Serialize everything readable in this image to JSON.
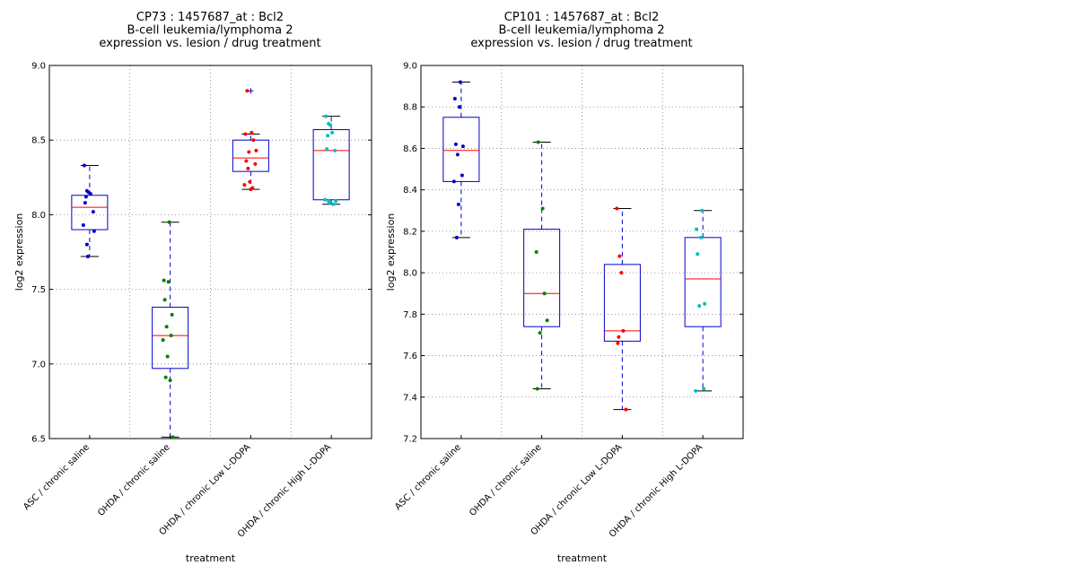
{
  "chart_data": [
    {
      "type": "box",
      "title": [
        "CP73 : 1457687_at : Bcl2",
        "B-cell leukemia/lymphoma 2",
        "expression vs. lesion / drug treatment"
      ],
      "xlabel": "treatment",
      "ylabel": "log2 expression",
      "ylim": [
        6.5,
        9.0
      ],
      "yticks": [
        "6.5",
        "7.0",
        "7.5",
        "8.0",
        "8.5",
        "9.0"
      ],
      "grid": true,
      "categories": [
        "ASC / chronic saline",
        "OHDA / chronic saline",
        "OHDA / chronic Low L-DOPA",
        "OHDA / chronic High L-DOPA"
      ],
      "series_colors": [
        "#0000cc",
        "#008000",
        "#ff0000",
        "#00bfbf"
      ],
      "boxes": [
        {
          "q1": 7.9,
          "median": 8.05,
          "q3": 8.13,
          "whislo": 7.72,
          "whishi": 8.33,
          "fliers": []
        },
        {
          "q1": 6.97,
          "median": 7.19,
          "q3": 7.38,
          "whislo": 6.51,
          "whishi": 7.95,
          "fliers": []
        },
        {
          "q1": 8.29,
          "median": 8.38,
          "q3": 8.5,
          "whislo": 8.17,
          "whishi": 8.54,
          "fliers": [
            8.83
          ]
        },
        {
          "q1": 8.1,
          "median": 8.43,
          "q3": 8.57,
          "whislo": 8.07,
          "whishi": 8.66,
          "fliers": []
        }
      ],
      "points": [
        [
          8.33,
          8.16,
          8.15,
          8.14,
          8.12,
          8.08,
          8.02,
          7.93,
          7.89,
          7.8,
          7.72
        ],
        [
          7.95,
          7.56,
          7.55,
          7.43,
          7.33,
          7.25,
          7.19,
          7.16,
          7.05,
          6.91,
          6.89,
          6.51
        ],
        [
          8.83,
          8.55,
          8.54,
          8.5,
          8.43,
          8.42,
          8.36,
          8.34,
          8.31,
          8.22,
          8.2,
          8.18,
          8.17
        ],
        [
          8.66,
          8.61,
          8.6,
          8.55,
          8.53,
          8.44,
          8.43,
          8.1,
          8.09,
          8.09,
          8.08,
          8.07
        ]
      ]
    },
    {
      "type": "box",
      "title": [
        "CP101 : 1457687_at : Bcl2",
        "B-cell leukemia/lymphoma 2",
        "expression vs. lesion / drug treatment"
      ],
      "xlabel": "treatment",
      "ylabel": "log2 expression",
      "ylim": [
        7.2,
        9.0
      ],
      "yticks": [
        "7.2",
        "7.4",
        "7.6",
        "7.8",
        "8.0",
        "8.2",
        "8.4",
        "8.6",
        "8.8",
        "9.0"
      ],
      "grid": true,
      "categories": [
        "ASC / chronic saline",
        "OHDA / chronic saline",
        "OHDA / chronic Low L-DOPA",
        "OHDA / chronic High L-DOPA"
      ],
      "series_colors": [
        "#0000cc",
        "#008000",
        "#ff0000",
        "#00bfbf"
      ],
      "boxes": [
        {
          "q1": 8.44,
          "median": 8.59,
          "q3": 8.75,
          "whislo": 8.17,
          "whishi": 8.92,
          "fliers": []
        },
        {
          "q1": 7.74,
          "median": 7.9,
          "q3": 8.21,
          "whislo": 7.44,
          "whishi": 8.63,
          "fliers": []
        },
        {
          "q1": 7.67,
          "median": 7.72,
          "q3": 8.04,
          "whislo": 7.34,
          "whishi": 8.31,
          "fliers": []
        },
        {
          "q1": 7.74,
          "median": 7.97,
          "q3": 8.17,
          "whislo": 7.43,
          "whishi": 8.3,
          "fliers": []
        }
      ],
      "points": [
        [
          8.92,
          8.84,
          8.8,
          8.62,
          8.61,
          8.57,
          8.47,
          8.44,
          8.33,
          8.17
        ],
        [
          8.63,
          8.31,
          8.1,
          7.9,
          7.77,
          7.71,
          7.44
        ],
        [
          8.31,
          8.08,
          8.0,
          7.72,
          7.69,
          7.66,
          7.34
        ],
        [
          8.3,
          8.21,
          8.17,
          8.09,
          7.85,
          7.84,
          7.44,
          7.43
        ]
      ]
    }
  ]
}
